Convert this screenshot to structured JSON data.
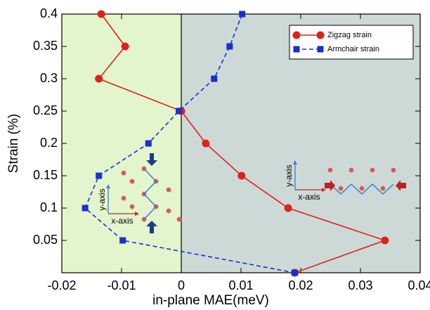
{
  "chart_data": {
    "type": "line",
    "x_label": "in-plane MAE(meV)",
    "y_label": "Strain (%)",
    "xlim": [
      -0.02,
      0.04
    ],
    "ylim": [
      0,
      0.4
    ],
    "xticks": [
      -0.02,
      -0.01,
      0,
      0.01,
      0.02,
      0.03,
      0.04
    ],
    "yticks": [
      0.05,
      0.1,
      0.15,
      0.2,
      0.25,
      0.3,
      0.35,
      0.4
    ],
    "legend": "upper right",
    "series": [
      {
        "name": "Zigzag strain",
        "color": "#e0201b",
        "marker": "circle",
        "dash": false,
        "x": [
          -0.0134,
          -0.0094,
          -0.0138,
          0.0,
          0.0041,
          0.0101,
          0.0179,
          0.0341,
          0.019
        ],
        "values": [
          0.4,
          0.35,
          0.3,
          0.25,
          0.2,
          0.15,
          0.1,
          0.05,
          0.0
        ]
      },
      {
        "name": "Armchair strain",
        "color": "#1a2fd0",
        "marker": "square",
        "dash": true,
        "x": [
          0.0102,
          0.0081,
          0.0055,
          -0.0004,
          -0.0055,
          -0.0138,
          -0.0161,
          -0.0098,
          0.019
        ],
        "values": [
          0.4,
          0.35,
          0.3,
          0.25,
          0.2,
          0.15,
          0.1,
          0.05,
          0.0
        ]
      }
    ],
    "insets": [
      {
        "y_axis": "y-axis",
        "x_axis": "x-axis"
      },
      {
        "y_axis": "y-axis",
        "x_axis": "x-axis"
      }
    ]
  }
}
